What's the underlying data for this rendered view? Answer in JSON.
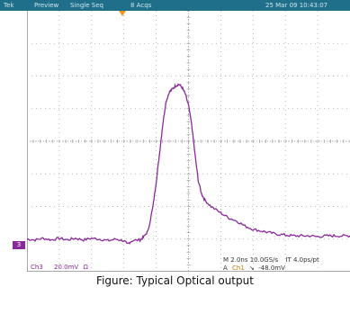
{
  "topbar": {
    "brand": "Tek",
    "mode": "Preview",
    "acq_mode": "Single Seq",
    "acq_count": "8 Acqs",
    "datetime": "25 Mar 09 10:43:07"
  },
  "channel_marker": "3",
  "readout": {
    "channel": "Ch3",
    "scale": "20.0mV",
    "coupling": "Ω",
    "timebase": "M 2.0ns 10.0GS/s",
    "it": "IT 4.0ps/pt",
    "trigger": "A",
    "trigger_channel": "Ch1",
    "trigger_slope": "↘",
    "trigger_level": "-48.0mV"
  },
  "caption": "Figure: Typical Optical output",
  "colors": {
    "trace": "#8a2a9a",
    "grid": "#a8a8a8",
    "topbar": "#1f6f8b",
    "trigger_marker": "#e89a1c",
    "readout_purple": "#8a2a9a",
    "readout_orange": "#c07a10"
  },
  "chart_data": {
    "type": "line",
    "x_divisions": 10,
    "y_divisions": 8,
    "xlim": [
      -10,
      10
    ],
    "xunit": "ns",
    "ylim": [
      -80,
      80
    ],
    "yunit": "mV",
    "grid": true,
    "series": [
      {
        "points": [
          [
            -10,
            -60
          ],
          [
            -9.5,
            -60.5
          ],
          [
            -9,
            -59.5
          ],
          [
            -8.5,
            -60.5
          ],
          [
            -8,
            -59.5
          ],
          [
            -7.5,
            -60.5
          ],
          [
            -7,
            -59.5
          ],
          [
            -6.5,
            -60.5
          ],
          [
            -6,
            -59.5
          ],
          [
            -5.5,
            -60
          ],
          [
            -5,
            -61
          ],
          [
            -4.5,
            -60
          ],
          [
            -4,
            -61
          ],
          [
            -3.8,
            -63
          ],
          [
            -3.5,
            -61
          ],
          [
            -3,
            -60.5
          ],
          [
            -2.8,
            -59
          ],
          [
            -2.5,
            -55
          ],
          [
            -2.2,
            -40
          ],
          [
            -2,
            -25
          ],
          [
            -1.8,
            -8
          ],
          [
            -1.6,
            10
          ],
          [
            -1.4,
            24
          ],
          [
            -1.2,
            30
          ],
          [
            -1,
            32
          ],
          [
            -0.8,
            34
          ],
          [
            -0.6,
            35
          ],
          [
            -0.4,
            33
          ],
          [
            -0.2,
            29
          ],
          [
            0,
            22
          ],
          [
            0.2,
            10
          ],
          [
            0.4,
            -8
          ],
          [
            0.6,
            -24
          ],
          [
            0.8,
            -32
          ],
          [
            1.0,
            -36
          ],
          [
            1.4,
            -40
          ],
          [
            2,
            -44
          ],
          [
            2.5,
            -47
          ],
          [
            3,
            -49
          ],
          [
            3.5,
            -52
          ],
          [
            4,
            -54
          ],
          [
            4.5,
            -55
          ],
          [
            5,
            -56
          ],
          [
            5.5,
            -57
          ],
          [
            6,
            -57.5
          ],
          [
            6.5,
            -58
          ],
          [
            7,
            -58
          ],
          [
            7.5,
            -58
          ],
          [
            8,
            -58.5
          ],
          [
            8.5,
            -58
          ],
          [
            9,
            -58
          ],
          [
            9.5,
            -58
          ],
          [
            10,
            -58
          ]
        ]
      }
    ]
  }
}
